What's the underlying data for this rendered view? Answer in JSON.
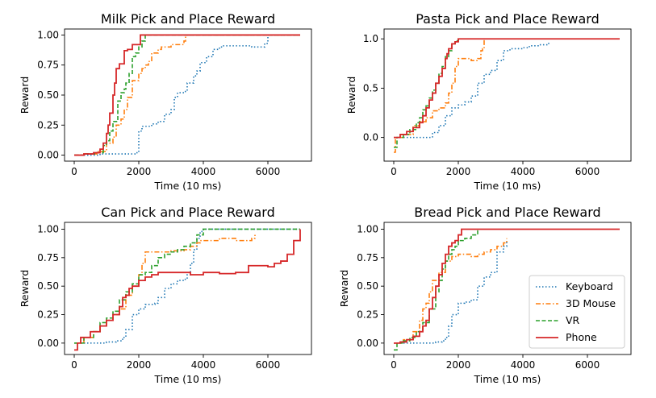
{
  "colors": {
    "Keyboard": "#1f77b4",
    "3D Mouse": "#ff7f0e",
    "VR": "#2ca02c",
    "Phone": "#d62728"
  },
  "chart_data": [
    {
      "type": "line",
      "title": "Milk Pick and Place Reward",
      "xlabel": "Time (10 ms)",
      "ylabel": "Reward",
      "xlim": [
        -300,
        7350
      ],
      "ylim": [
        -0.05,
        1.05
      ],
      "xticks": [
        0,
        2000,
        4000,
        6000
      ],
      "xtick_labels": [
        "0",
        "2000",
        "4000",
        "6000"
      ],
      "yticks": [
        0,
        0.25,
        0.5,
        0.75,
        1.0
      ],
      "ytick_labels": [
        "0.00",
        "0.25",
        "0.50",
        "0.75",
        "1.00"
      ],
      "series": [
        {
          "name": "Keyboard",
          "style": "dotted",
          "x": [
            0,
            800,
            1500,
            1900,
            2000,
            2100,
            2400,
            2600,
            2800,
            3000,
            3100,
            3200,
            3400,
            3500,
            3600,
            3700,
            3800,
            3900,
            4100,
            4300,
            4500,
            4600,
            5000,
            5500,
            5900,
            6000,
            7000
          ],
          "y": [
            0,
            0.01,
            0.01,
            0.02,
            0.2,
            0.24,
            0.26,
            0.28,
            0.34,
            0.38,
            0.48,
            0.52,
            0.53,
            0.6,
            0.6,
            0.66,
            0.7,
            0.77,
            0.82,
            0.88,
            0.9,
            0.91,
            0.91,
            0.9,
            0.93,
            1.0,
            1.0
          ]
        },
        {
          "name": "3D Mouse",
          "style": "dashdot",
          "x": [
            0,
            300,
            700,
            1000,
            1200,
            1300,
            1450,
            1550,
            1650,
            1800,
            2000,
            2100,
            2200,
            2300,
            2400,
            2500,
            2600,
            2700,
            2800,
            3000,
            3200,
            3400,
            3450,
            7000
          ],
          "y": [
            0,
            0.01,
            0.03,
            0.1,
            0.15,
            0.25,
            0.3,
            0.38,
            0.48,
            0.62,
            0.68,
            0.72,
            0.75,
            0.78,
            0.85,
            0.85,
            0.88,
            0.9,
            0.9,
            0.92,
            0.92,
            0.95,
            1.0,
            1.0
          ]
        },
        {
          "name": "VR",
          "style": "dashed",
          "x": [
            0,
            300,
            700,
            900,
            1000,
            1100,
            1200,
            1350,
            1450,
            1550,
            1600,
            1700,
            1800,
            1900,
            2000,
            2100,
            2200,
            7000
          ],
          "y": [
            0,
            0.01,
            0.02,
            0.08,
            0.12,
            0.2,
            0.28,
            0.45,
            0.52,
            0.55,
            0.6,
            0.68,
            0.82,
            0.85,
            0.9,
            0.95,
            1.0,
            1.0
          ]
        },
        {
          "name": "Phone",
          "style": "solid",
          "x": [
            0,
            300,
            600,
            800,
            900,
            1000,
            1050,
            1100,
            1200,
            1250,
            1300,
            1400,
            1500,
            1550,
            1650,
            1700,
            1800,
            1950,
            2050,
            2100,
            7000
          ],
          "y": [
            0,
            0.01,
            0.02,
            0.05,
            0.1,
            0.18,
            0.25,
            0.35,
            0.5,
            0.6,
            0.72,
            0.76,
            0.76,
            0.87,
            0.88,
            0.88,
            0.92,
            0.92,
            1.0,
            1.0,
            1.0
          ]
        }
      ]
    },
    {
      "type": "line",
      "title": "Pasta Pick and Place Reward",
      "xlabel": "Time (10 ms)",
      "ylabel": "Reward",
      "xlim": [
        -300,
        7350
      ],
      "ylim": [
        -0.24,
        1.1
      ],
      "xticks": [
        0,
        2000,
        4000,
        6000
      ],
      "xtick_labels": [
        "0",
        "2000",
        "4000",
        "6000"
      ],
      "yticks": [
        0,
        0.5,
        1.0
      ],
      "ytick_labels": [
        "0.0",
        "0.5",
        "1.0"
      ],
      "series": [
        {
          "name": "Keyboard",
          "style": "dotted",
          "x": [
            0,
            300,
            600,
            900,
            1100,
            1200,
            1400,
            1600,
            1800,
            2000,
            2200,
            2400,
            2600,
            2800,
            3000,
            3200,
            3400,
            3600,
            3800,
            4000,
            4200,
            4500,
            4800
          ],
          "y": [
            0,
            0,
            0,
            0,
            0,
            0.05,
            0.12,
            0.22,
            0.3,
            0.33,
            0.36,
            0.42,
            0.55,
            0.64,
            0.68,
            0.78,
            0.88,
            0.9,
            0.9,
            0.91,
            0.93,
            0.94,
            0.98
          ]
        },
        {
          "name": "3D Mouse",
          "style": "dashdot",
          "x": [
            0,
            50,
            300,
            600,
            800,
            1000,
            1200,
            1400,
            1600,
            1700,
            1800,
            1900,
            2000,
            2100,
            2200,
            2400,
            2600,
            2700,
            2750,
            2800,
            7000
          ],
          "y": [
            -0.15,
            0,
            0.03,
            0.12,
            0.16,
            0.2,
            0.27,
            0.3,
            0.35,
            0.45,
            0.55,
            0.72,
            0.8,
            0.8,
            0.8,
            0.78,
            0.8,
            0.88,
            0.9,
            1.0,
            1.0
          ]
        },
        {
          "name": "VR",
          "style": "dashed",
          "x": [
            0,
            100,
            300,
            500,
            700,
            800,
            900,
            1000,
            1100,
            1200,
            1300,
            1400,
            1500,
            1600,
            1700,
            1800,
            1900,
            2000,
            7000
          ],
          "y": [
            -0.1,
            0,
            0.03,
            0.08,
            0.15,
            0.2,
            0.28,
            0.32,
            0.4,
            0.48,
            0.55,
            0.65,
            0.72,
            0.82,
            0.88,
            0.95,
            0.98,
            1.0,
            1.0
          ]
        },
        {
          "name": "Phone",
          "style": "solid",
          "x": [
            0,
            200,
            400,
            600,
            800,
            900,
            1000,
            1100,
            1200,
            1300,
            1400,
            1500,
            1600,
            1650,
            1700,
            1800,
            1900,
            2000,
            7000
          ],
          "y": [
            0,
            0.03,
            0.06,
            0.1,
            0.15,
            0.22,
            0.3,
            0.38,
            0.45,
            0.55,
            0.62,
            0.7,
            0.8,
            0.85,
            0.9,
            0.95,
            0.97,
            1.0,
            1.0
          ]
        }
      ]
    },
    {
      "type": "line",
      "title": "Can Pick and Place Reward",
      "xlabel": "Time (10 ms)",
      "ylabel": "Reward",
      "xlim": [
        -300,
        7350
      ],
      "ylim": [
        -0.1,
        1.06
      ],
      "xticks": [
        0,
        2000,
        4000,
        6000
      ],
      "xtick_labels": [
        "0",
        "2000",
        "4000",
        "6000"
      ],
      "yticks": [
        0,
        0.25,
        0.5,
        0.75,
        1.0
      ],
      "ytick_labels": [
        "0.00",
        "0.25",
        "0.50",
        "0.75",
        "1.00"
      ],
      "series": [
        {
          "name": "Keyboard",
          "style": "dotted",
          "x": [
            0,
            500,
            1000,
            1300,
            1500,
            1600,
            1800,
            2000,
            2200,
            2500,
            2600,
            2800,
            3000,
            3200,
            3400,
            3500,
            3600,
            3700,
            3800,
            3900,
            4000,
            7000
          ],
          "y": [
            0,
            0,
            0.01,
            0.02,
            0.05,
            0.12,
            0.25,
            0.3,
            0.34,
            0.35,
            0.4,
            0.48,
            0.52,
            0.55,
            0.56,
            0.6,
            0.7,
            0.82,
            0.92,
            0.98,
            1.0,
            1.0
          ]
        },
        {
          "name": "3D Mouse",
          "style": "dashdot",
          "x": [
            0,
            300,
            600,
            800,
            1000,
            1200,
            1400,
            1600,
            1800,
            2000,
            2100,
            2200,
            2400,
            2600,
            3000,
            3400,
            3600,
            3800,
            3900,
            4000,
            4500,
            5000,
            5500,
            5600
          ],
          "y": [
            0,
            0.05,
            0.1,
            0.15,
            0.2,
            0.25,
            0.3,
            0.42,
            0.5,
            0.6,
            0.7,
            0.8,
            0.8,
            0.8,
            0.81,
            0.82,
            0.85,
            0.88,
            0.9,
            0.9,
            0.92,
            0.9,
            0.92,
            0.95
          ]
        },
        {
          "name": "VR",
          "style": "dashed",
          "x": [
            0,
            300,
            600,
            800,
            1000,
            1200,
            1400,
            1600,
            1800,
            2000,
            2200,
            2400,
            2600,
            2800,
            3000,
            3200,
            3400,
            3600,
            3800,
            4000,
            7000
          ],
          "y": [
            0,
            0.05,
            0.1,
            0.18,
            0.22,
            0.28,
            0.38,
            0.45,
            0.52,
            0.6,
            0.62,
            0.68,
            0.75,
            0.78,
            0.8,
            0.82,
            0.85,
            0.88,
            0.95,
            1.0,
            1.0
          ]
        },
        {
          "name": "Phone",
          "style": "solid",
          "x": [
            0,
            100,
            200,
            500,
            800,
            1000,
            1200,
            1400,
            1500,
            1600,
            1700,
            1800,
            2000,
            2200,
            2400,
            2600,
            3000,
            3600,
            4000,
            4500,
            5000,
            5400,
            6000,
            6200,
            6400,
            6600,
            6800,
            7000
          ],
          "y": [
            -0.06,
            0,
            0.05,
            0.1,
            0.15,
            0.2,
            0.25,
            0.32,
            0.4,
            0.42,
            0.48,
            0.5,
            0.55,
            0.58,
            0.6,
            0.62,
            0.62,
            0.6,
            0.62,
            0.61,
            0.62,
            0.68,
            0.67,
            0.7,
            0.72,
            0.78,
            0.9,
            1.0
          ]
        }
      ]
    },
    {
      "type": "line",
      "title": "Bread Pick and Place Reward",
      "xlabel": "Time (10 ms)",
      "ylabel": "Reward",
      "xlim": [
        -300,
        7350
      ],
      "ylim": [
        -0.1,
        1.06
      ],
      "xticks": [
        0,
        2000,
        4000,
        6000
      ],
      "xtick_labels": [
        "0",
        "2000",
        "4000",
        "6000"
      ],
      "yticks": [
        0,
        0.25,
        0.5,
        0.75,
        1.0
      ],
      "ytick_labels": [
        "0.00",
        "0.25",
        "0.50",
        "0.75",
        "1.00"
      ],
      "legend": {
        "location": "lower right",
        "entries": [
          "Keyboard",
          "3D Mouse",
          "VR",
          "Phone"
        ]
      },
      "series": [
        {
          "name": "Keyboard",
          "style": "dotted",
          "x": [
            0,
            500,
            1000,
            1300,
            1500,
            1600,
            1700,
            1800,
            2000,
            2200,
            2400,
            2600,
            2800,
            3000,
            3200,
            3400,
            3500
          ],
          "y": [
            0,
            0,
            0,
            0.01,
            0.02,
            0.05,
            0.15,
            0.25,
            0.35,
            0.36,
            0.38,
            0.5,
            0.58,
            0.62,
            0.8,
            0.85,
            0.9
          ]
        },
        {
          "name": "3D Mouse",
          "style": "dashdot",
          "x": [
            0,
            300,
            600,
            800,
            900,
            1000,
            1100,
            1200,
            1400,
            1600,
            1800,
            2000,
            2200,
            2400,
            2600,
            2800,
            3000,
            3200,
            3400,
            3500
          ],
          "y": [
            0,
            0.03,
            0.1,
            0.2,
            0.3,
            0.35,
            0.45,
            0.55,
            0.62,
            0.72,
            0.76,
            0.78,
            0.78,
            0.76,
            0.78,
            0.8,
            0.82,
            0.85,
            0.88,
            0.92
          ]
        },
        {
          "name": "VR",
          "style": "dashed",
          "x": [
            0,
            100,
            300,
            500,
            700,
            900,
            1100,
            1300,
            1400,
            1500,
            1600,
            1700,
            1800,
            1900,
            2000,
            2200,
            2400,
            2600
          ],
          "y": [
            -0.06,
            0,
            0.02,
            0.05,
            0.1,
            0.18,
            0.3,
            0.45,
            0.55,
            0.65,
            0.72,
            0.78,
            0.82,
            0.85,
            0.9,
            0.92,
            0.95,
            1.0
          ]
        },
        {
          "name": "Phone",
          "style": "solid",
          "x": [
            0,
            200,
            400,
            600,
            800,
            900,
            1000,
            1100,
            1200,
            1300,
            1400,
            1500,
            1600,
            1700,
            1800,
            1900,
            2000,
            2100,
            7000
          ],
          "y": [
            0,
            0.01,
            0.03,
            0.06,
            0.1,
            0.15,
            0.2,
            0.3,
            0.4,
            0.5,
            0.6,
            0.7,
            0.78,
            0.85,
            0.88,
            0.9,
            0.95,
            1.0,
            1.0
          ]
        }
      ]
    }
  ]
}
